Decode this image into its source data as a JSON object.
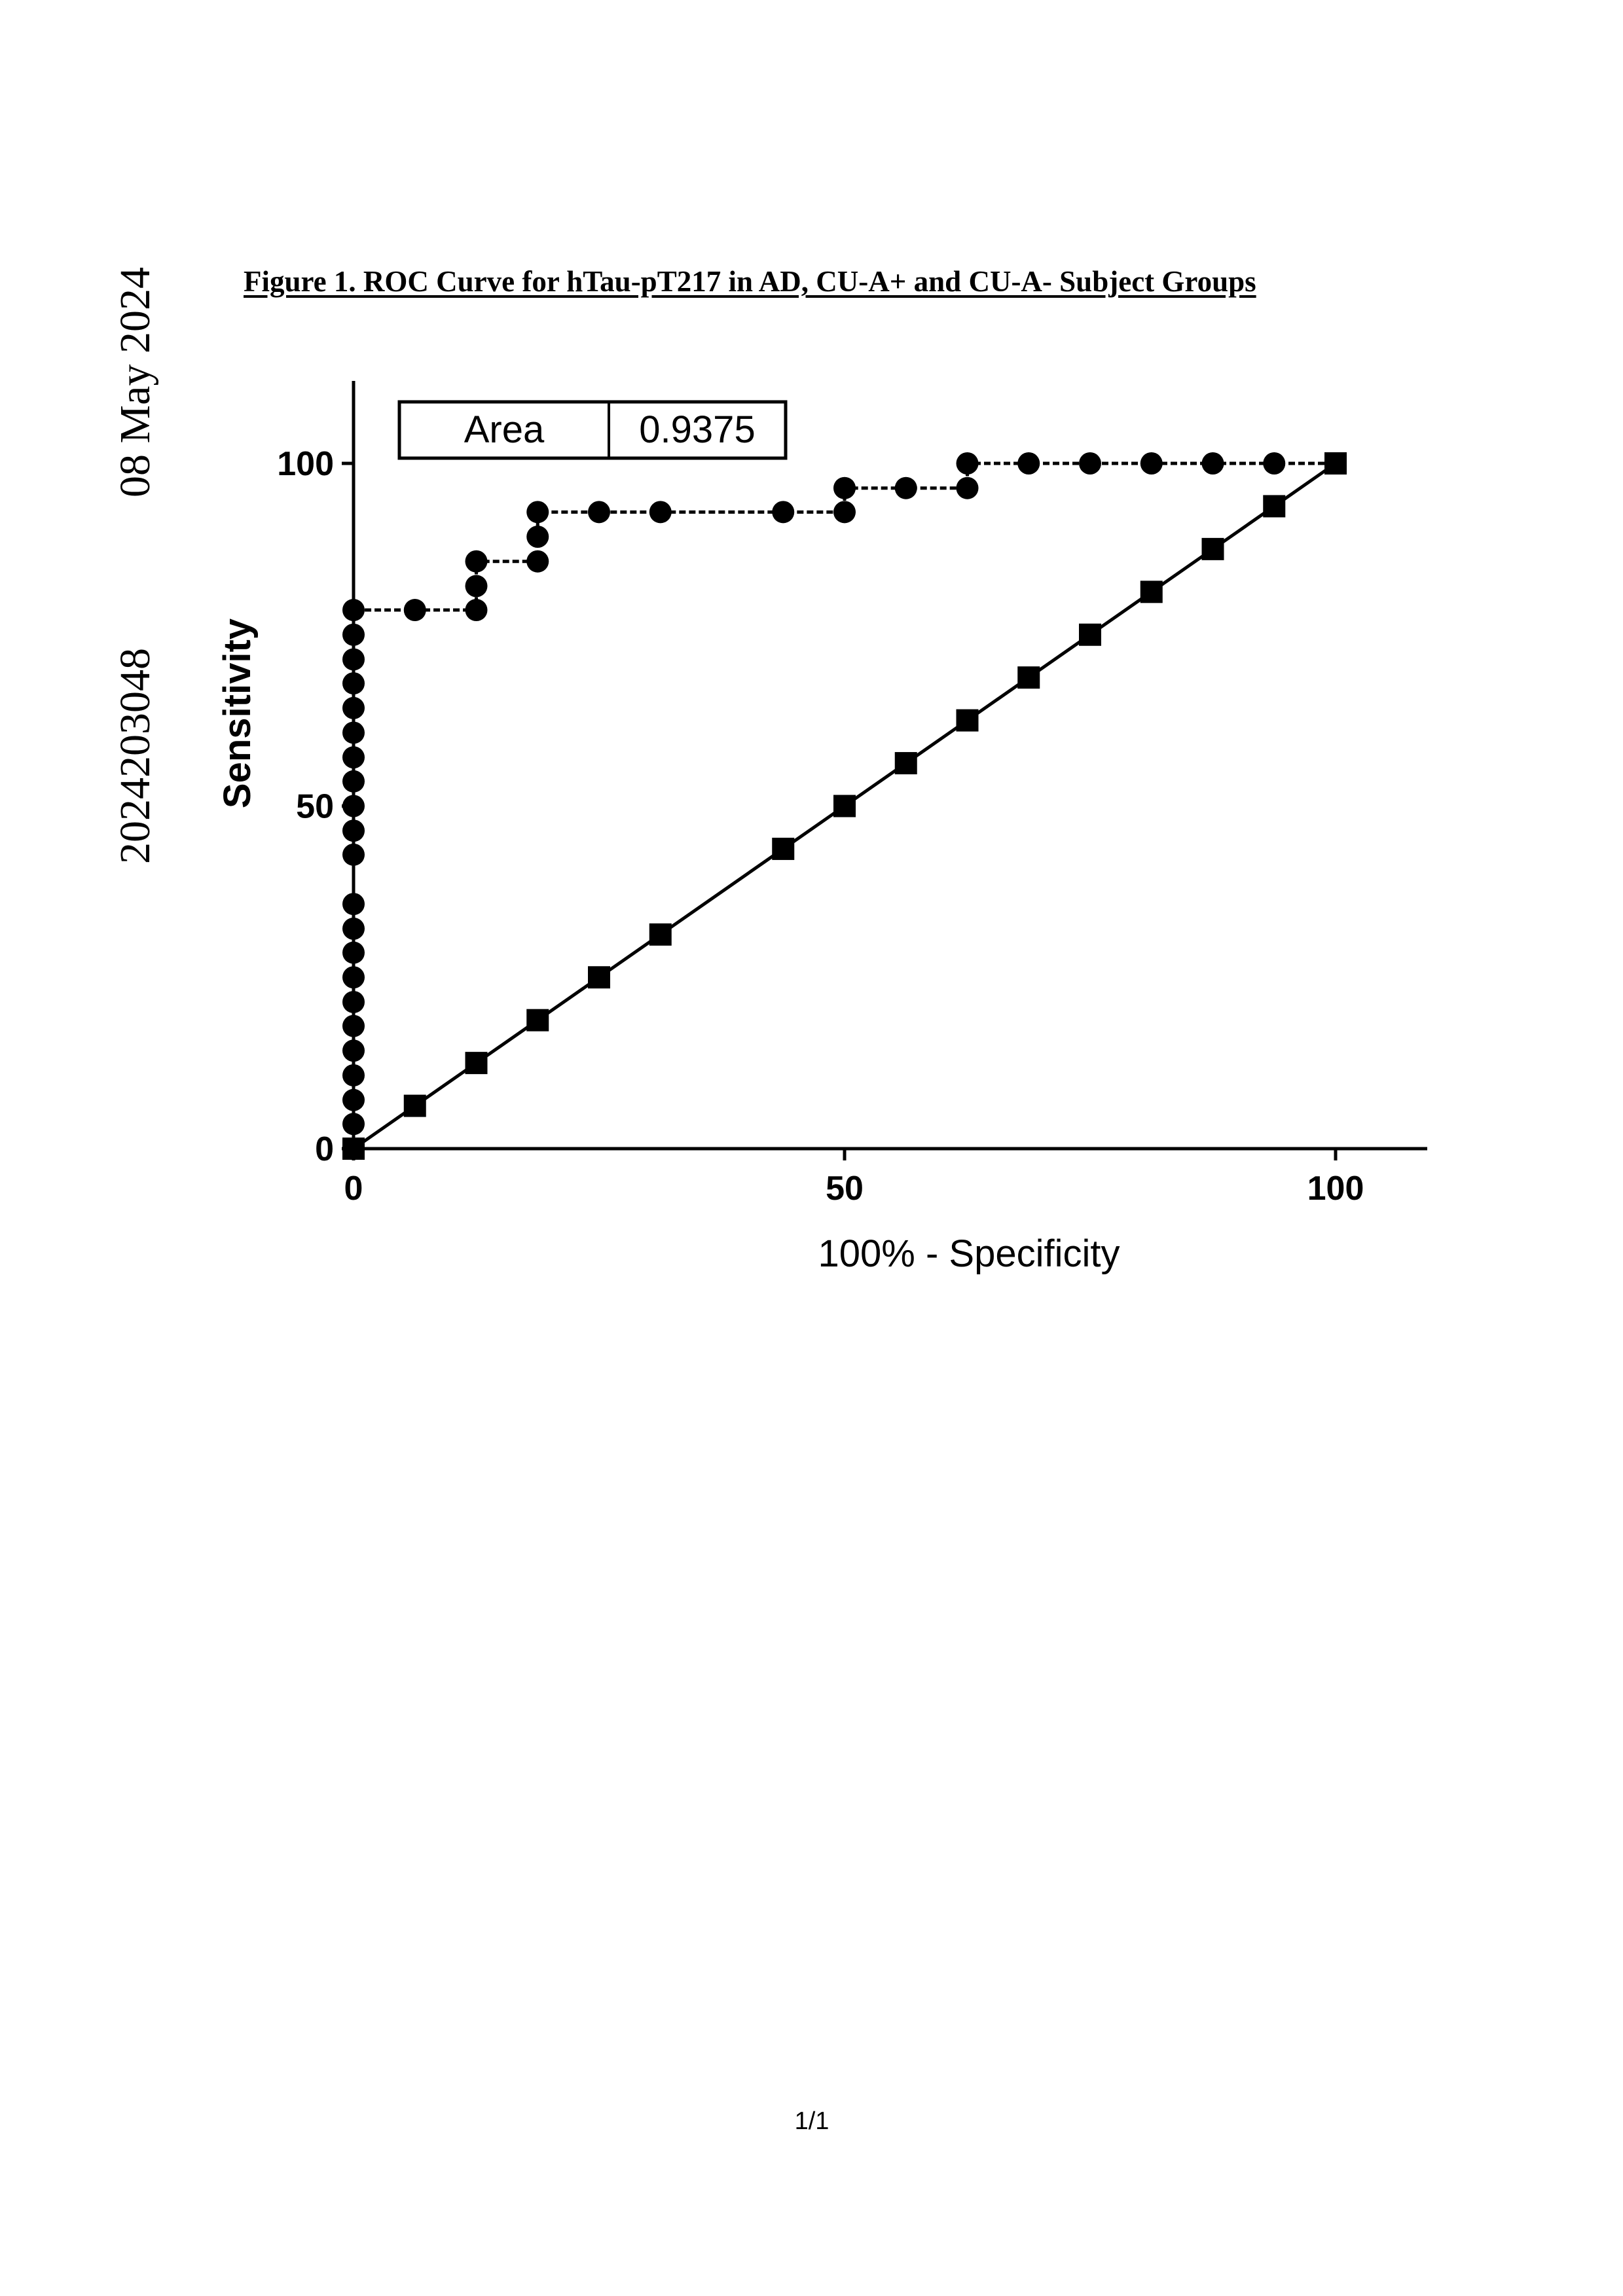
{
  "side_stamp": {
    "number": "2024203048",
    "date": "08 May 2024"
  },
  "figure_title": "Figure 1.  ROC Curve for hTau-pT217 in AD, CU-A+ and CU-A- Subject Groups",
  "page_number": "1/1",
  "chart_data": {
    "type": "line",
    "title": "",
    "xlabel": "100% - Specificity",
    "ylabel": "Sensitivity",
    "xlim": [
      0,
      100
    ],
    "ylim": [
      0,
      100
    ],
    "xticks": [
      "0",
      "50",
      "100"
    ],
    "yticks": [
      "0",
      "50",
      "100"
    ],
    "grid": false,
    "area_box": {
      "label": "Area",
      "value": "0.9375",
      "placement": "top-left"
    },
    "series": [
      {
        "marker": "circle",
        "line_style": "dotted-step",
        "points": [
          [
            0,
            0
          ],
          [
            0,
            3.6
          ],
          [
            0,
            7.1
          ],
          [
            0,
            10.7
          ],
          [
            0,
            14.3
          ],
          [
            0,
            17.9
          ],
          [
            0,
            21.4
          ],
          [
            0,
            25
          ],
          [
            0,
            28.6
          ],
          [
            0,
            32.1
          ],
          [
            0,
            35.7
          ],
          [
            0,
            42.9
          ],
          [
            0,
            46.4
          ],
          [
            0,
            50
          ],
          [
            0,
            53.6
          ],
          [
            0,
            57.1
          ],
          [
            0,
            60.7
          ],
          [
            0,
            64.3
          ],
          [
            0,
            67.9
          ],
          [
            0,
            71.4
          ],
          [
            0,
            75
          ],
          [
            0,
            78.6
          ],
          [
            6.25,
            78.6
          ],
          [
            12.5,
            78.6
          ],
          [
            12.5,
            82.1
          ],
          [
            12.5,
            85.7
          ],
          [
            18.75,
            85.7
          ],
          [
            18.75,
            89.3
          ],
          [
            18.75,
            92.9
          ],
          [
            25,
            92.9
          ],
          [
            31.25,
            92.9
          ],
          [
            43.75,
            92.9
          ],
          [
            50,
            92.9
          ],
          [
            50,
            96.4
          ],
          [
            56.25,
            96.4
          ],
          [
            62.5,
            96.4
          ],
          [
            62.5,
            100
          ],
          [
            68.75,
            100
          ],
          [
            75,
            100
          ],
          [
            81.25,
            100
          ],
          [
            87.5,
            100
          ],
          [
            93.75,
            100
          ],
          [
            100,
            100
          ]
        ]
      },
      {
        "marker": "square",
        "line_style": "solid",
        "points": [
          [
            0,
            0
          ],
          [
            6.25,
            6.25
          ],
          [
            12.5,
            12.5
          ],
          [
            18.75,
            18.75
          ],
          [
            25,
            25
          ],
          [
            31.25,
            31.25
          ],
          [
            43.75,
            43.75
          ],
          [
            50,
            50
          ],
          [
            56.25,
            56.25
          ],
          [
            62.5,
            62.5
          ],
          [
            68.75,
            68.75
          ],
          [
            75,
            75
          ],
          [
            81.25,
            81.25
          ],
          [
            87.5,
            87.5
          ],
          [
            93.75,
            93.75
          ],
          [
            100,
            100
          ]
        ]
      }
    ]
  }
}
